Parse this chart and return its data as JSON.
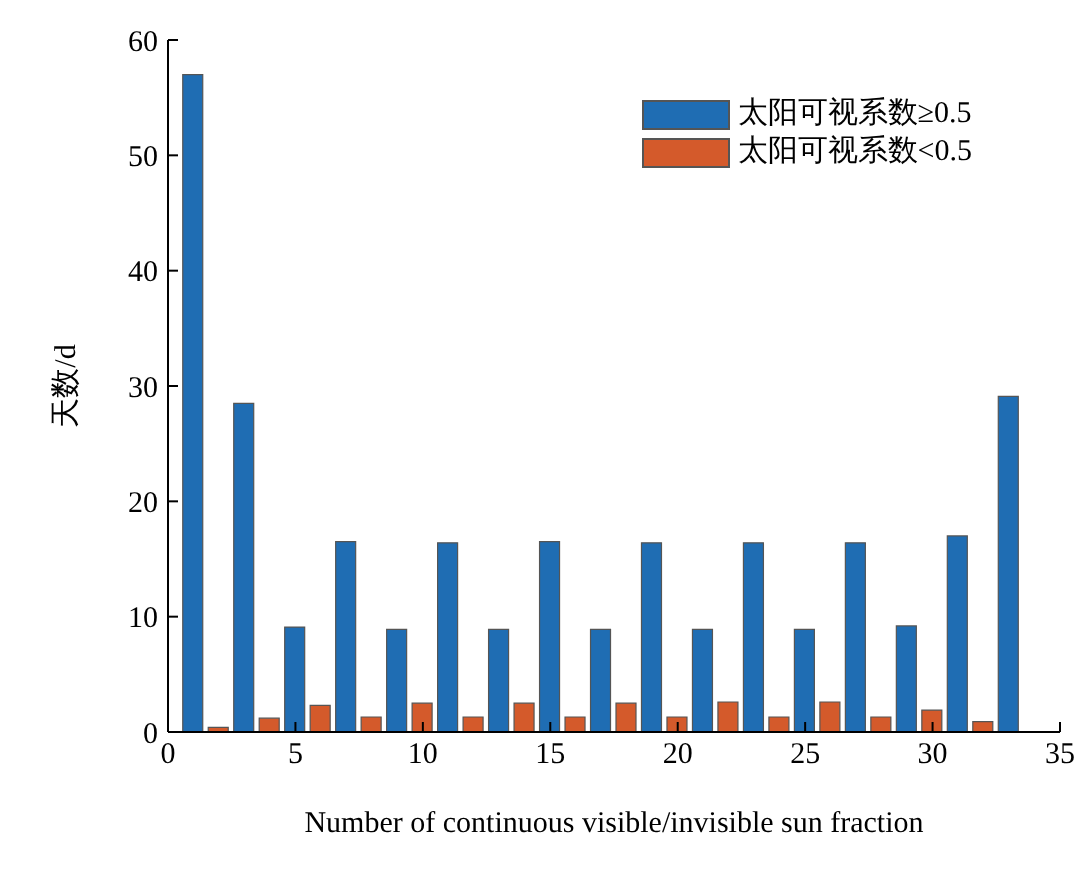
{
  "chart_data": {
    "type": "bar",
    "xlabel": "Number of continuous visible/invisible sun fraction",
    "ylabel": "天数/d",
    "xlim": [
      0,
      35
    ],
    "xticks": [
      0,
      5,
      10,
      15,
      20,
      25,
      30,
      35
    ],
    "ylim": [
      0,
      60
    ],
    "yticks": [
      0,
      10,
      20,
      30,
      40,
      50,
      60
    ],
    "grid": false,
    "legend": "top right",
    "series": [
      {
        "name": "太阳可视系数≥0.5",
        "color": "#1f6db3",
        "x": [
          1,
          3,
          5,
          7,
          9,
          11,
          13,
          15,
          17,
          19,
          21,
          23,
          25,
          27,
          29,
          31,
          33
        ],
        "values": [
          57,
          28.5,
          9.1,
          16.5,
          8.9,
          16.4,
          8.9,
          16.5,
          8.9,
          16.4,
          8.9,
          16.4,
          8.9,
          16.4,
          9.2,
          17,
          29.1
        ]
      },
      {
        "name": "太阳可视系数<0.5",
        "color": "#d45a2b",
        "x": [
          2,
          4,
          6,
          8,
          10,
          12,
          14,
          16,
          18,
          20,
          22,
          24,
          26,
          28,
          30,
          32
        ],
        "values": [
          0.4,
          1.2,
          2.3,
          1.3,
          2.5,
          1.3,
          2.5,
          1.3,
          2.5,
          1.3,
          2.6,
          1.3,
          2.6,
          1.3,
          1.9,
          0.9
        ]
      }
    ]
  }
}
